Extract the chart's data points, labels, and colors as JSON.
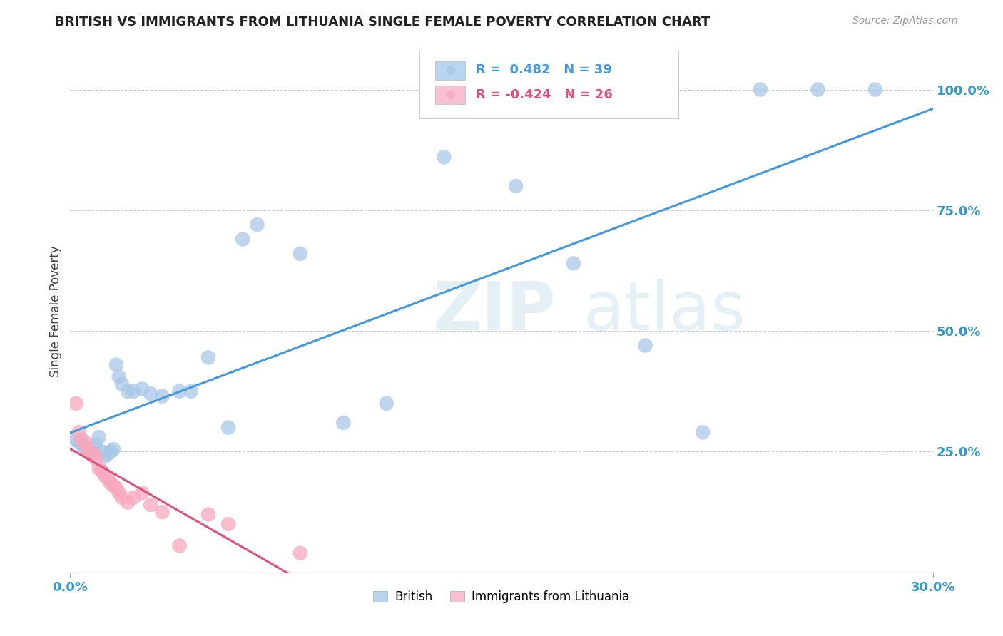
{
  "title": "BRITISH VS IMMIGRANTS FROM LITHUANIA SINGLE FEMALE POVERTY CORRELATION CHART",
  "source": "Source: ZipAtlas.com",
  "xlabel_range": [
    0.0,
    0.3
  ],
  "ylabel_range": [
    0.0,
    1.08
  ],
  "british_R": 0.482,
  "british_N": 39,
  "lithuania_R": -0.424,
  "lithuania_N": 26,
  "british_color": "#a8c8e8",
  "british_line_color": "#4499dd",
  "lithuania_color": "#f8a8be",
  "lithuania_line_color": "#e05080",
  "british_x": [
    0.002,
    0.003,
    0.004,
    0.005,
    0.006,
    0.007,
    0.008,
    0.009,
    0.01,
    0.011,
    0.012,
    0.013,
    0.014,
    0.015,
    0.016,
    0.017,
    0.018,
    0.02,
    0.022,
    0.025,
    0.028,
    0.032,
    0.038,
    0.042,
    0.048,
    0.055,
    0.06,
    0.065,
    0.08,
    0.095,
    0.11,
    0.13,
    0.155,
    0.175,
    0.2,
    0.22,
    0.24,
    0.26,
    0.28
  ],
  "british_y": [
    0.275,
    0.27,
    0.265,
    0.26,
    0.25,
    0.245,
    0.255,
    0.265,
    0.28,
    0.25,
    0.24,
    0.245,
    0.25,
    0.255,
    0.43,
    0.405,
    0.39,
    0.375,
    0.375,
    0.38,
    0.37,
    0.365,
    0.375,
    0.375,
    0.445,
    0.3,
    0.69,
    0.72,
    0.66,
    0.31,
    0.35,
    0.86,
    0.8,
    0.64,
    0.47,
    0.29,
    1.0,
    1.0,
    1.0
  ],
  "lithuania_x": [
    0.002,
    0.003,
    0.004,
    0.005,
    0.006,
    0.007,
    0.008,
    0.009,
    0.01,
    0.011,
    0.012,
    0.013,
    0.014,
    0.015,
    0.016,
    0.017,
    0.018,
    0.02,
    0.022,
    0.025,
    0.028,
    0.032,
    0.038,
    0.048,
    0.055,
    0.08
  ],
  "lithuania_y": [
    0.35,
    0.29,
    0.275,
    0.27,
    0.255,
    0.25,
    0.245,
    0.235,
    0.215,
    0.21,
    0.2,
    0.195,
    0.185,
    0.18,
    0.175,
    0.165,
    0.155,
    0.145,
    0.155,
    0.165,
    0.14,
    0.125,
    0.055,
    0.12,
    0.1,
    0.04
  ],
  "grid_color": "#cccccc",
  "background_color": "#ffffff",
  "legend_box_color_british": "#b8d4ee",
  "legend_box_color_lithuania": "#f8c0d0"
}
